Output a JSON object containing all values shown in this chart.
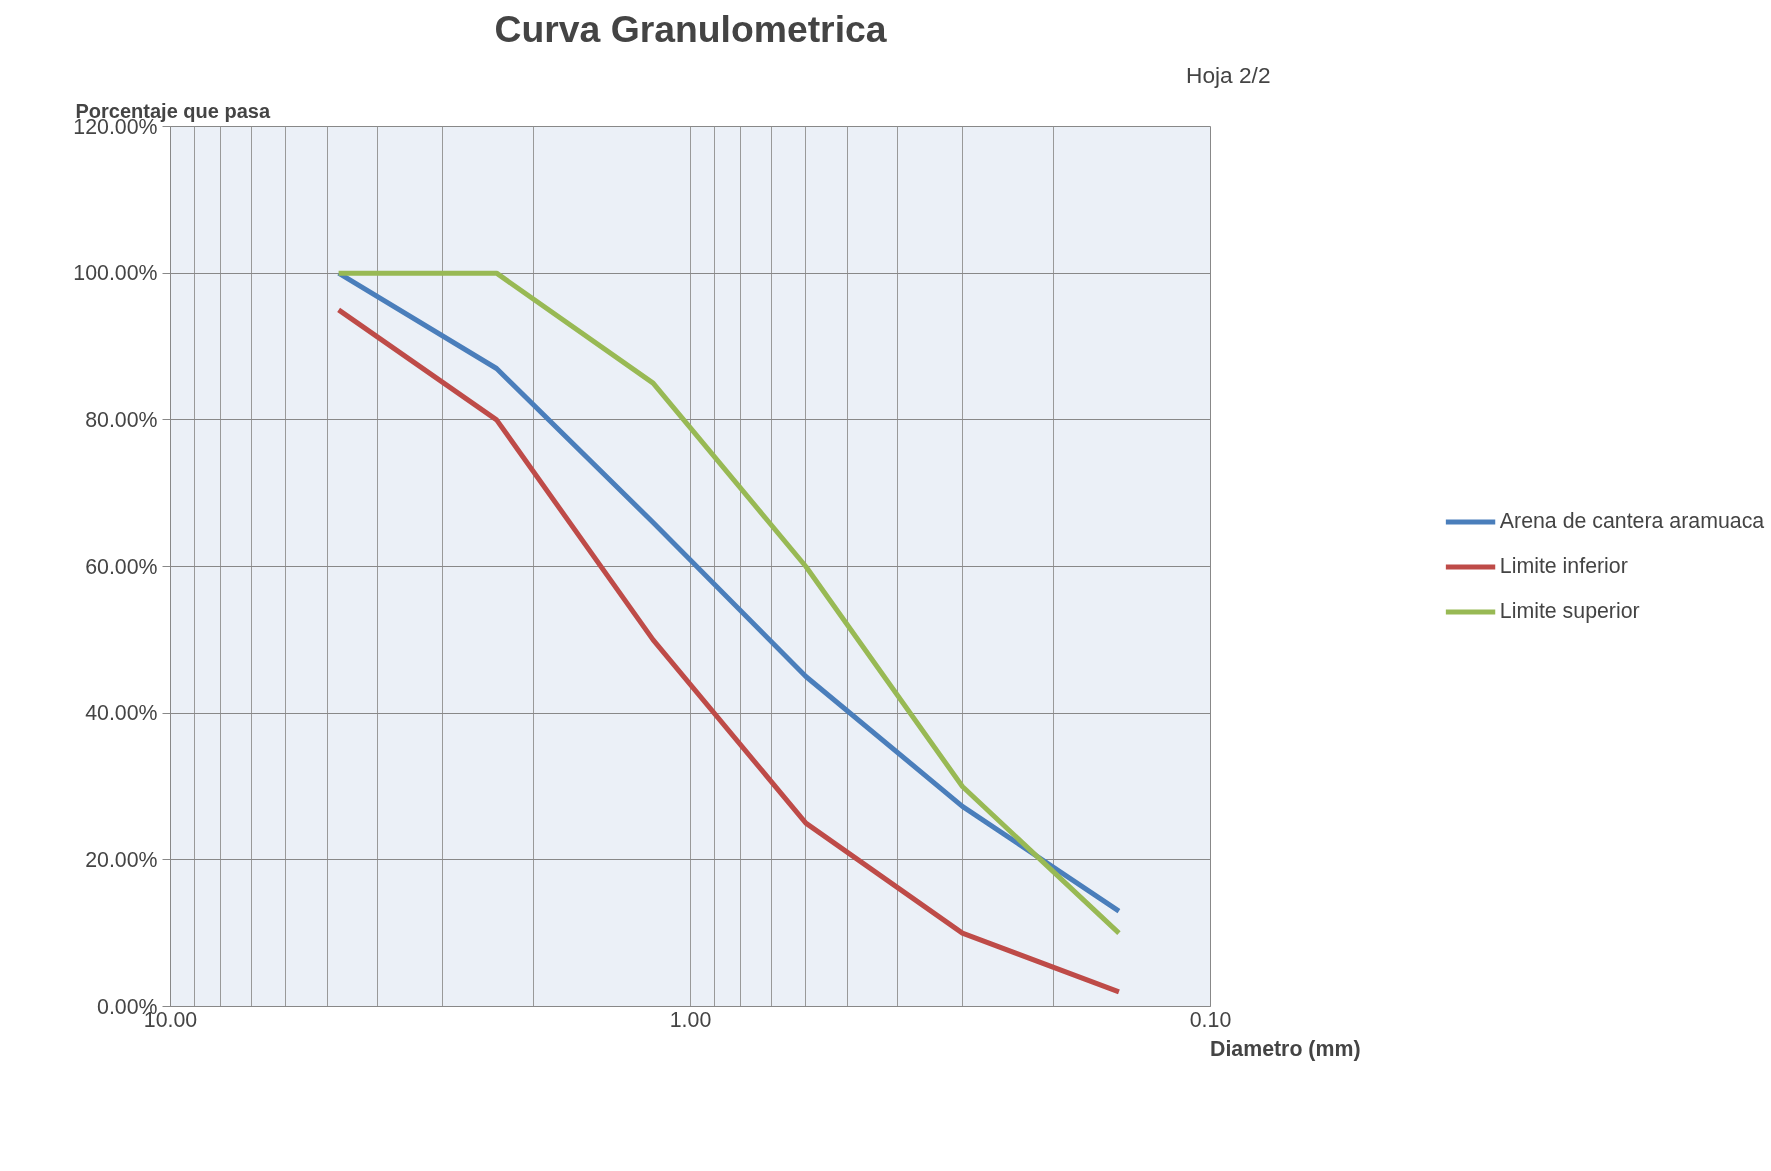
{
  "chart_data": {
    "type": "line",
    "title": "Curva Granulometrica",
    "xlabel": "Diametro (mm)",
    "ylabel": "Porcentaje que pasa",
    "annotations": [
      "Hoja 2/2"
    ],
    "x": [
      4.75,
      2.36,
      1.18,
      0.6,
      0.3,
      0.15
    ],
    "series": [
      {
        "name": "Arena de cantera aramuaca",
        "color": "#4a7ebb",
        "values": [
          100,
          87,
          66,
          45,
          27.3,
          13
        ]
      },
      {
        "name": "Limite inferior",
        "color": "#be4b48",
        "values": [
          95,
          80,
          50,
          25,
          10,
          2
        ]
      },
      {
        "name": "Limite superior",
        "color": "#98b954",
        "values": [
          100,
          100,
          85,
          60,
          30,
          10
        ]
      }
    ],
    "log": "x",
    "xlim": [
      10,
      0.1
    ],
    "xticks": [
      {
        "value": 10,
        "label": "10.00"
      },
      {
        "value": 9,
        "label": null
      },
      {
        "value": 8,
        "label": null
      },
      {
        "value": 7,
        "label": null
      },
      {
        "value": 6,
        "label": null
      },
      {
        "value": 5,
        "label": null
      },
      {
        "value": 4,
        "label": null
      },
      {
        "value": 3,
        "label": null
      },
      {
        "value": 2,
        "label": null
      },
      {
        "value": 1,
        "label": "1.00"
      },
      {
        "value": 0.9,
        "label": null
      },
      {
        "value": 0.8,
        "label": null
      },
      {
        "value": 0.7,
        "label": null
      },
      {
        "value": 0.6,
        "label": null
      },
      {
        "value": 0.5,
        "label": null
      },
      {
        "value": 0.4,
        "label": null
      },
      {
        "value": 0.3,
        "label": null
      },
      {
        "value": 0.2,
        "label": null
      },
      {
        "value": 0.1,
        "label": "0.10"
      }
    ],
    "ylim": [
      0,
      120
    ],
    "yticks": [
      {
        "value": 0,
        "label": "0.00%"
      },
      {
        "value": 20,
        "label": "20.00%"
      },
      {
        "value": 40,
        "label": "40.00%"
      },
      {
        "value": 60,
        "label": "60.00%"
      },
      {
        "value": 80,
        "label": "80.00%"
      },
      {
        "value": 100,
        "label": "100.00%"
      },
      {
        "value": 120,
        "label": "120.00%"
      }
    ],
    "grid": true,
    "legend": "right",
    "marker": "none",
    "line_style": "solid"
  }
}
